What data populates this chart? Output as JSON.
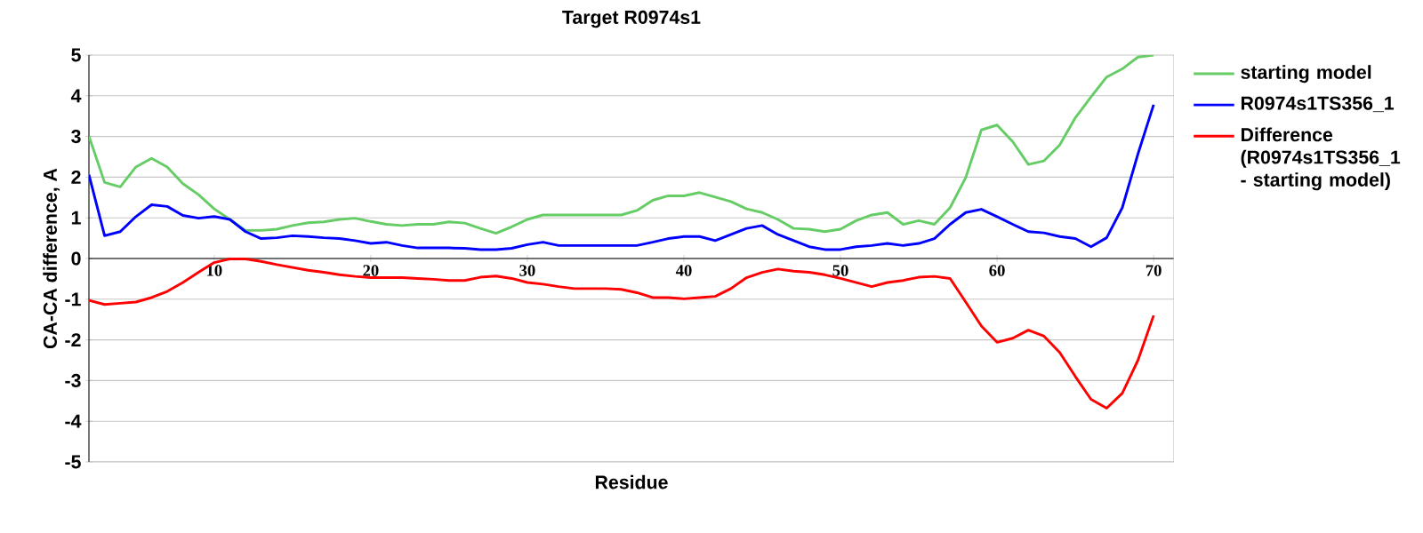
{
  "chart_data": {
    "type": "line",
    "title": "Target R0974s1",
    "xlabel": "Residue",
    "ylabel": "CA-CA difference, A",
    "x": [
      2,
      3,
      4,
      5,
      6,
      7,
      8,
      9,
      10,
      11,
      12,
      13,
      14,
      15,
      16,
      17,
      18,
      19,
      20,
      21,
      22,
      23,
      24,
      25,
      26,
      27,
      28,
      29,
      30,
      31,
      32,
      33,
      34,
      35,
      36,
      37,
      38,
      39,
      40,
      41,
      42,
      43,
      44,
      45,
      46,
      47,
      48,
      49,
      50,
      51,
      52,
      53,
      54,
      55,
      56,
      57,
      58,
      59,
      60,
      61,
      62,
      63,
      64,
      65,
      66,
      67,
      68,
      69,
      70
    ],
    "xlim": [
      2,
      71.3
    ],
    "xticks": [
      10,
      20,
      30,
      40,
      50,
      60,
      70
    ],
    "ylim": [
      -5,
      5
    ],
    "yticks": [
      -5,
      -4,
      -3,
      -2,
      -1,
      0,
      1,
      2,
      3,
      4,
      5
    ],
    "grid": "y",
    "legend": "top right",
    "line_style": "solid",
    "series": [
      {
        "name": "starting model",
        "color": "#66cc66",
        "values": [
          3.01,
          1.87,
          1.76,
          2.25,
          2.46,
          2.25,
          1.84,
          1.57,
          1.22,
          0.96,
          0.69,
          0.69,
          0.72,
          0.81,
          0.88,
          0.9,
          0.96,
          0.99,
          0.91,
          0.84,
          0.81,
          0.84,
          0.84,
          0.9,
          0.87,
          0.74,
          0.62,
          0.78,
          0.96,
          1.07,
          1.07,
          1.07,
          1.07,
          1.07,
          1.07,
          1.18,
          1.43,
          1.54,
          1.54,
          1.62,
          1.51,
          1.4,
          1.22,
          1.13,
          0.96,
          0.74,
          0.72,
          0.66,
          0.72,
          0.93,
          1.07,
          1.13,
          0.84,
          0.93,
          0.84,
          1.25,
          1.99,
          3.16,
          3.28,
          2.87,
          2.31,
          2.4,
          2.79,
          3.46,
          3.97,
          4.46,
          4.66,
          4.95,
          5.0
        ]
      },
      {
        "name": "R0974s1TS356_1",
        "color": "#0000ff",
        "values": [
          2.06,
          0.56,
          0.66,
          1.03,
          1.32,
          1.28,
          1.06,
          0.99,
          1.03,
          0.96,
          0.66,
          0.49,
          0.51,
          0.56,
          0.54,
          0.51,
          0.49,
          0.44,
          0.37,
          0.4,
          0.32,
          0.26,
          0.26,
          0.26,
          0.25,
          0.22,
          0.22,
          0.25,
          0.34,
          0.4,
          0.32,
          0.32,
          0.32,
          0.32,
          0.32,
          0.32,
          0.4,
          0.49,
          0.54,
          0.54,
          0.44,
          0.59,
          0.74,
          0.81,
          0.59,
          0.44,
          0.29,
          0.22,
          0.22,
          0.29,
          0.32,
          0.37,
          0.32,
          0.37,
          0.49,
          0.84,
          1.13,
          1.21,
          1.03,
          0.84,
          0.66,
          0.63,
          0.54,
          0.49,
          0.29,
          0.51,
          1.25,
          2.57,
          3.78
        ]
      },
      {
        "name": "Difference (R0974s1TS356_1 - starting model)",
        "color": "#ff0000",
        "values": [
          -1.03,
          -1.13,
          -1.1,
          -1.07,
          -0.96,
          -0.81,
          -0.59,
          -0.34,
          -0.1,
          -0.01,
          -0.01,
          -0.07,
          -0.15,
          -0.22,
          -0.29,
          -0.34,
          -0.4,
          -0.44,
          -0.47,
          -0.47,
          -0.47,
          -0.49,
          -0.51,
          -0.54,
          -0.54,
          -0.46,
          -0.43,
          -0.49,
          -0.59,
          -0.63,
          -0.69,
          -0.74,
          -0.74,
          -0.74,
          -0.76,
          -0.84,
          -0.96,
          -0.96,
          -0.99,
          -0.96,
          -0.93,
          -0.74,
          -0.47,
          -0.34,
          -0.26,
          -0.31,
          -0.34,
          -0.4,
          -0.49,
          -0.59,
          -0.69,
          -0.59,
          -0.54,
          -0.46,
          -0.44,
          -0.49,
          -1.07,
          -1.66,
          -2.06,
          -1.96,
          -1.76,
          -1.91,
          -2.31,
          -2.9,
          -3.46,
          -3.68,
          -3.31,
          -2.5,
          -1.4
        ]
      }
    ]
  }
}
